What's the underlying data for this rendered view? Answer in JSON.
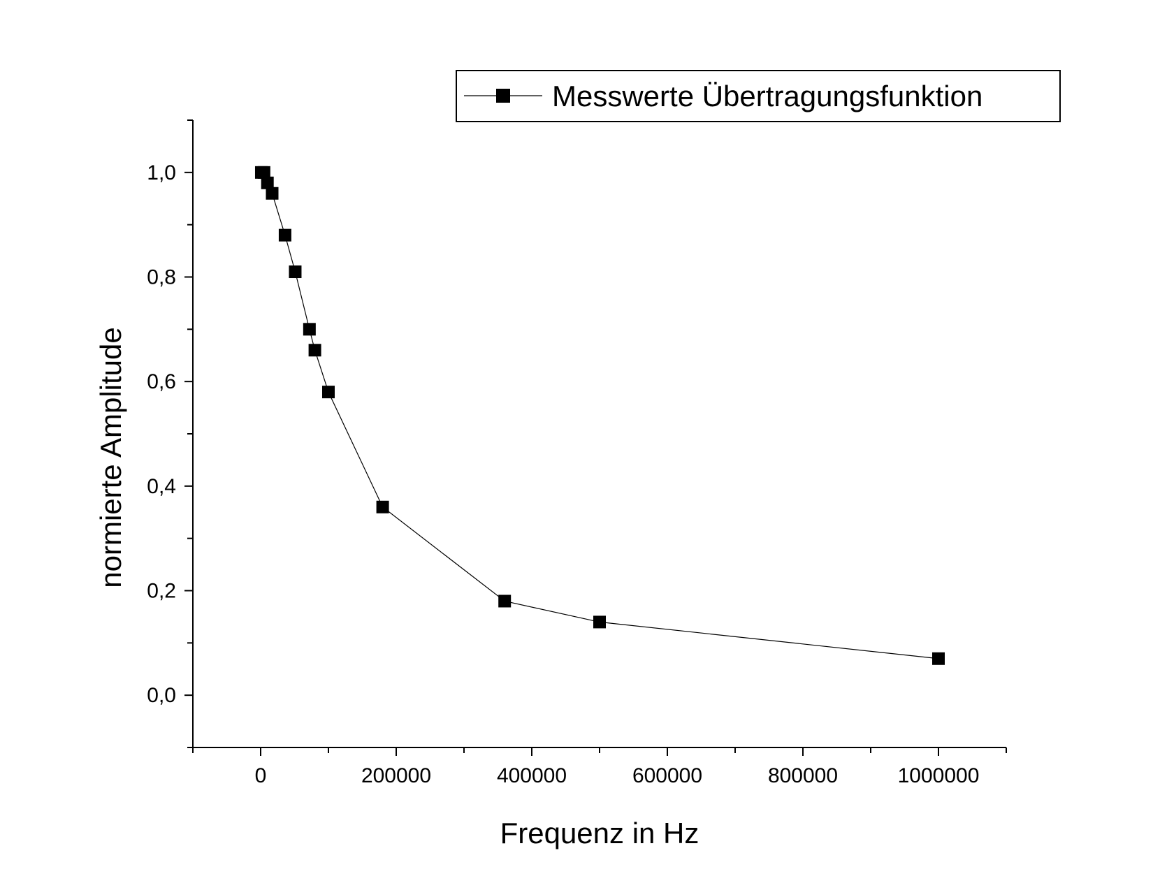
{
  "chart_data": {
    "type": "line",
    "xlabel": "Frequenz in Hz",
    "ylabel": "normierte Amplitude",
    "xlim": [
      -100000,
      1100000
    ],
    "ylim": [
      -0.1,
      1.1
    ],
    "x_ticks": [
      0,
      200000,
      400000,
      600000,
      800000,
      1000000
    ],
    "x_tick_labels": [
      "0",
      "200000",
      "400000",
      "600000",
      "800000",
      "1000000"
    ],
    "y_ticks": [
      0.0,
      0.2,
      0.4,
      0.6,
      0.8,
      1.0
    ],
    "y_tick_labels": [
      "0,0",
      "0,2",
      "0,4",
      "0,6",
      "0,8",
      "1,0"
    ],
    "grid": false,
    "legend_position": "top-right",
    "series": [
      {
        "name": "Messwerte Übertragungsfunktion",
        "marker": "square",
        "color": "#000000",
        "x": [
          1000,
          5000,
          10000,
          17000,
          36000,
          51000,
          72000,
          80000,
          100000,
          180000,
          360000,
          500000,
          1000000
        ],
        "y": [
          1.0,
          1.0,
          0.98,
          0.96,
          0.88,
          0.81,
          0.7,
          0.66,
          0.58,
          0.36,
          0.18,
          0.14,
          0.07
        ]
      }
    ]
  }
}
